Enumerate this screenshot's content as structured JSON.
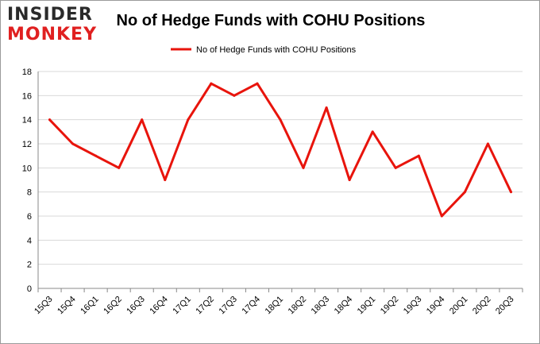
{
  "logo": {
    "line1": "INSIDER",
    "line2": "MONKEY"
  },
  "colors": {
    "series": "#e8140c",
    "grid": "#d9d9d9",
    "axis": "#888888"
  },
  "chart_data": {
    "type": "line",
    "title": "No of Hedge Funds with COHU Positions",
    "categories": [
      "15Q3",
      "15Q4",
      "16Q1",
      "16Q2",
      "16Q3",
      "16Q4",
      "17Q1",
      "17Q2",
      "17Q3",
      "17Q4",
      "18Q1",
      "18Q2",
      "18Q3",
      "18Q4",
      "19Q1",
      "19Q2",
      "19Q3",
      "19Q4",
      "20Q1",
      "20Q2",
      "20Q3"
    ],
    "series": [
      {
        "name": "No of Hedge Funds with COHU Positions",
        "values": [
          14,
          12,
          11,
          10,
          14,
          9,
          14,
          17,
          16,
          17,
          14,
          10,
          15,
          9,
          13,
          10,
          11,
          6,
          8,
          12,
          8
        ]
      }
    ],
    "ylim": [
      0,
      18
    ],
    "yticks": [
      0,
      2,
      4,
      6,
      8,
      10,
      12,
      14,
      16,
      18
    ],
    "grid": true,
    "legend": "top-center"
  }
}
